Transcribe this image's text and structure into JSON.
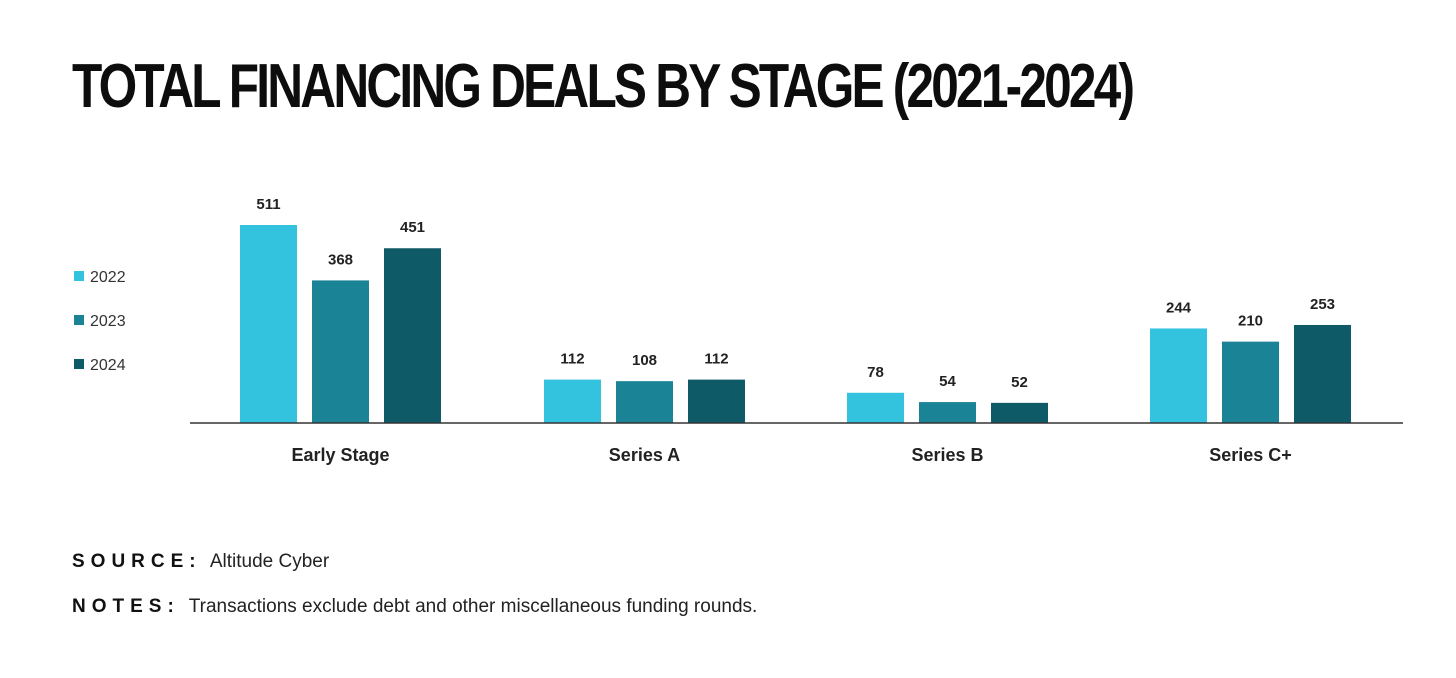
{
  "title": "TOTAL FINANCING DEALS BY STAGE (2021-2024)",
  "chart_data": {
    "type": "bar",
    "categories": [
      "Early Stage",
      "Series A",
      "Series B",
      "Series C+"
    ],
    "series": [
      {
        "name": "2022",
        "values": [
          511,
          112,
          78,
          244
        ],
        "color": "#34c3df"
      },
      {
        "name": "2023",
        "values": [
          368,
          108,
          54,
          210
        ],
        "color": "#1b8396"
      },
      {
        "name": "2024",
        "values": [
          451,
          112,
          52,
          253
        ],
        "color": "#0f5a67"
      }
    ],
    "ylim": [
      0,
      511
    ],
    "grid": false,
    "legend_position": "left"
  },
  "footer": {
    "source_label": "SOURCE:",
    "source_value": "Altitude Cyber",
    "notes_label": "NOTES:",
    "notes_value": "Transactions exclude debt and other miscellaneous funding rounds."
  }
}
